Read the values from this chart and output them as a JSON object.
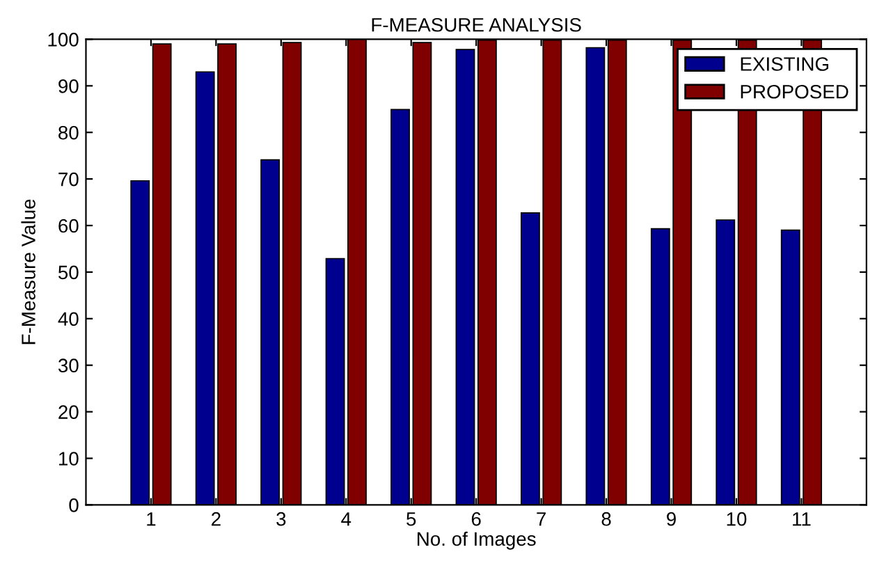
{
  "chart_data": {
    "type": "bar",
    "title": "F-MEASURE ANALYSIS",
    "xlabel": "No. of Images",
    "ylabel": "F-Measure Value",
    "categories": [
      "1",
      "2",
      "3",
      "4",
      "5",
      "6",
      "7",
      "8",
      "9",
      "10",
      "11"
    ],
    "series": [
      {
        "name": "EXISTING",
        "color": "#00008f",
        "values": [
          69.6,
          93,
          74.1,
          52.9,
          84.9,
          97.8,
          62.7,
          98.2,
          59.3,
          61.2,
          59.0
        ]
      },
      {
        "name": "PROPOSED",
        "color": "#800000",
        "values": [
          99,
          99,
          99.3,
          100,
          99.3,
          99.8,
          99.8,
          99.8,
          99.8,
          99.8,
          99.8
        ]
      }
    ],
    "ylim": [
      0,
      100
    ],
    "yticks": [
      0,
      10,
      20,
      30,
      40,
      50,
      60,
      70,
      80,
      90,
      100
    ],
    "grid": false,
    "legend": "top right"
  }
}
